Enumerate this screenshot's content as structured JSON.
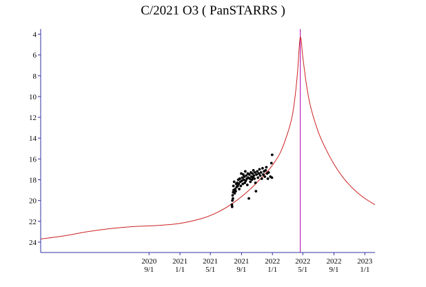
{
  "chart_data": {
    "type": "scatter",
    "title": "C/2021 O3 ( PanSTARRS )",
    "xlabel": "",
    "ylabel": "",
    "xlim": [
      "2019-07-01",
      "2023-02-10"
    ],
    "ylim": [
      25,
      3.5
    ],
    "y_inverted": true,
    "y_ticks": [
      4,
      6,
      8,
      10,
      12,
      14,
      16,
      18,
      20,
      22,
      24
    ],
    "x_ticks": [
      {
        "date": "2020-09-01",
        "year": "2020",
        "md": "9/1"
      },
      {
        "date": "2021-01-01",
        "year": "2021",
        "md": "1/1"
      },
      {
        "date": "2021-05-01",
        "year": "2021",
        "md": "5/1"
      },
      {
        "date": "2021-09-01",
        "year": "2021",
        "md": "9/1"
      },
      {
        "date": "2022-01-01",
        "year": "2022",
        "md": "1/1"
      },
      {
        "date": "2022-05-01",
        "year": "2022",
        "md": "5/1"
      },
      {
        "date": "2022-09-01",
        "year": "2022",
        "md": "9/1"
      },
      {
        "date": "2023-01-01",
        "year": "2023",
        "md": "1/1"
      }
    ],
    "perihelion_date": "2022-04-21",
    "grid": false,
    "colors": {
      "curve": "#cc2020",
      "perihelion_line": "#b000b0",
      "points": "#000000",
      "axis": "#3030a0"
    },
    "series": [
      {
        "kind": "curve",
        "x": [
          "2019-07-01",
          "2019-10-01",
          "2020-01-01",
          "2020-04-01",
          "2020-07-01",
          "2020-10-01",
          "2021-01-01",
          "2021-04-01",
          "2021-06-01",
          "2021-08-01",
          "2021-10-01",
          "2021-12-01",
          "2022-01-01",
          "2022-02-01",
          "2022-03-01",
          "2022-03-20",
          "2022-04-01",
          "2022-04-10",
          "2022-04-21",
          "2022-05-01",
          "2022-05-15",
          "2022-06-01",
          "2022-07-01",
          "2022-08-01",
          "2022-09-01",
          "2022-10-01",
          "2022-11-01",
          "2022-12-01",
          "2023-01-01",
          "2023-02-10"
        ],
        "y": [
          23.7,
          23.4,
          23.0,
          22.7,
          22.5,
          22.4,
          22.2,
          21.7,
          21.1,
          20.2,
          19.0,
          17.5,
          16.6,
          15.4,
          13.6,
          11.9,
          9.9,
          7.7,
          4.3,
          6.2,
          8.8,
          11.0,
          13.4,
          15.1,
          16.5,
          17.6,
          18.5,
          19.2,
          19.8,
          20.4
        ]
      },
      {
        "kind": "observations",
        "points": [
          [
            "2021-07-25",
            20.4
          ],
          [
            "2021-07-26",
            20.6
          ],
          [
            "2021-07-27",
            20.0
          ],
          [
            "2021-07-28",
            19.5
          ],
          [
            "2021-07-29",
            19.8
          ],
          [
            "2021-07-30",
            19.2
          ],
          [
            "2021-07-31",
            18.6
          ],
          [
            "2021-08-01",
            19.0
          ],
          [
            "2021-08-03",
            18.2
          ],
          [
            "2021-08-05",
            19.3
          ],
          [
            "2021-08-07",
            18.9
          ],
          [
            "2021-08-09",
            19.1
          ],
          [
            "2021-08-11",
            18.4
          ],
          [
            "2021-08-13",
            18.7
          ],
          [
            "2021-08-15",
            18.3
          ],
          [
            "2021-08-17",
            18.6
          ],
          [
            "2021-08-19",
            18.0
          ],
          [
            "2021-08-21",
            18.4
          ],
          [
            "2021-08-23",
            18.9
          ],
          [
            "2021-08-25",
            17.9
          ],
          [
            "2021-08-27",
            18.2
          ],
          [
            "2021-08-29",
            18.6
          ],
          [
            "2021-08-31",
            17.4
          ],
          [
            "2021-09-02",
            18.1
          ],
          [
            "2021-09-04",
            17.8
          ],
          [
            "2021-09-06",
            18.4
          ],
          [
            "2021-09-08",
            17.5
          ],
          [
            "2021-09-10",
            18.0
          ],
          [
            "2021-09-12",
            17.7
          ],
          [
            "2021-09-14",
            18.3
          ],
          [
            "2021-09-16",
            17.2
          ],
          [
            "2021-09-18",
            18.1
          ],
          [
            "2021-09-20",
            17.6
          ],
          [
            "2021-09-22",
            17.9
          ],
          [
            "2021-09-24",
            18.5
          ],
          [
            "2021-09-26",
            17.4
          ],
          [
            "2021-09-28",
            17.8
          ],
          [
            "2021-09-30",
            19.8
          ],
          [
            "2021-10-02",
            17.5
          ],
          [
            "2021-10-04",
            17.9
          ],
          [
            "2021-10-06",
            18.2
          ],
          [
            "2021-10-08",
            17.3
          ],
          [
            "2021-10-10",
            17.7
          ],
          [
            "2021-10-12",
            18.0
          ],
          [
            "2021-10-14",
            17.4
          ],
          [
            "2021-10-16",
            17.8
          ],
          [
            "2021-10-18",
            17.1
          ],
          [
            "2021-10-20",
            17.6
          ],
          [
            "2021-10-22",
            17.9
          ],
          [
            "2021-10-24",
            17.3
          ],
          [
            "2021-10-26",
            18.3
          ],
          [
            "2021-10-28",
            19.1
          ],
          [
            "2021-10-30",
            17.5
          ],
          [
            "2021-11-02",
            17.2
          ],
          [
            "2021-11-05",
            17.8
          ],
          [
            "2021-11-08",
            17.4
          ],
          [
            "2021-11-11",
            17.0
          ],
          [
            "2021-11-14",
            17.6
          ],
          [
            "2021-11-17",
            17.3
          ],
          [
            "2021-11-20",
            17.9
          ],
          [
            "2021-11-23",
            16.9
          ],
          [
            "2021-11-26",
            17.5
          ],
          [
            "2021-11-29",
            17.2
          ],
          [
            "2021-12-02",
            17.7
          ],
          [
            "2021-12-05",
            17.1
          ],
          [
            "2021-12-08",
            16.8
          ],
          [
            "2021-12-11",
            17.4
          ],
          [
            "2021-12-14",
            17.9
          ],
          [
            "2021-12-17",
            17.3
          ],
          [
            "2021-12-24",
            17.7
          ],
          [
            "2021-12-28",
            16.4
          ],
          [
            "2021-12-30",
            17.8
          ],
          [
            "2021-12-31",
            15.6
          ]
        ]
      }
    ]
  }
}
